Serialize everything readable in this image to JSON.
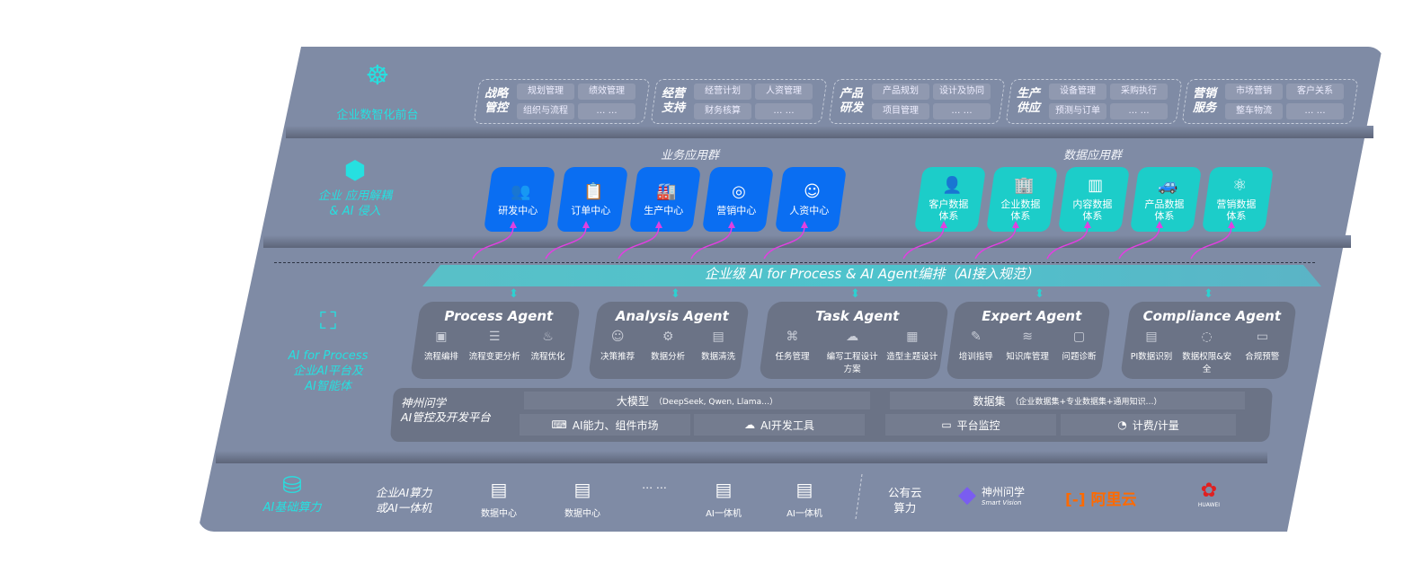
{
  "layers": {
    "front": {
      "label": "企业数智化前台",
      "icon": "brain-icon"
    },
    "app": {
      "label_line1": "企业 应用解耦",
      "label_line2": "& AI 侵入",
      "icon": "molecule-icon"
    },
    "ai": {
      "label_line1": "AI for Process",
      "label_line2": "企业AI平台及",
      "label_line3": "AI智能体",
      "icon": "face-scan-icon"
    },
    "infra": {
      "label": "AI基础算力",
      "icon": "database-icon"
    }
  },
  "front_groups": [
    {
      "title": "战略管控",
      "tags": [
        "规划管理",
        "绩效管理",
        "组织与流程",
        "… …"
      ]
    },
    {
      "title": "经营支持",
      "tags": [
        "经营计划",
        "人资管理",
        "财务核算",
        "… …"
      ]
    },
    {
      "title": "产品研发",
      "tags": [
        "产品规划",
        "设计及协同",
        "项目管理",
        "… …"
      ]
    },
    {
      "title": "生产供应",
      "tags": [
        "设备管理",
        "采购执行",
        "预测与订单",
        "… …"
      ]
    },
    {
      "title": "营销服务",
      "tags": [
        "市场营销",
        "客户关系",
        "整车物流",
        "… …"
      ]
    }
  ],
  "business_apps": {
    "title": "业务应用群",
    "items": [
      {
        "label": "研发中心",
        "icon": "team-icon"
      },
      {
        "label": "订单中心",
        "icon": "clipboard-icon"
      },
      {
        "label": "生产中心",
        "icon": "factory-icon"
      },
      {
        "label": "营销中心",
        "icon": "target-icon"
      },
      {
        "label": "人资中心",
        "icon": "people-icon"
      }
    ]
  },
  "data_apps": {
    "title": "数据应用群",
    "items": [
      {
        "label": "客户数据体系",
        "icon": "user-icon"
      },
      {
        "label": "企业数据体系",
        "icon": "building-icon"
      },
      {
        "label": "内容数据体系",
        "icon": "books-icon"
      },
      {
        "label": "产品数据体系",
        "icon": "car-icon"
      },
      {
        "label": "营销数据体系",
        "icon": "atom-icon"
      }
    ]
  },
  "orchestration_banner": "企业级 AI for Process & AI Agent编排（AI接入规范）",
  "agents": [
    {
      "name": "Process Agent",
      "items": [
        "流程编排",
        "流程变更分析",
        "流程优化"
      ]
    },
    {
      "name": "Analysis Agent",
      "items": [
        "决策推荐",
        "数据分析",
        "数据清洗"
      ]
    },
    {
      "name": "Task Agent",
      "items": [
        "任务管理",
        "编写工程设计方案",
        "造型主题设计"
      ]
    },
    {
      "name": "Expert Agent",
      "items": [
        "培训指导",
        "知识库管理",
        "问题诊断"
      ]
    },
    {
      "name": "Compliance Agent",
      "items": [
        "PI数据识别",
        "数据权限&安全",
        "合规预警"
      ]
    }
  ],
  "platform": {
    "title_line1": "神州问学",
    "title_line2": "AI管控及开发平台",
    "llm": "大模型",
    "llm_note": "（DeepSeek, Qwen, Llama…）",
    "dataset": "数据集",
    "dataset_note": "（企业数据集+专业数据集+通用知识…）",
    "tools": [
      "AI能力、组件市场",
      "AI开发工具",
      "平台监控",
      "计费/计量"
    ]
  },
  "infra": {
    "onprem_line1": "企业AI算力",
    "onprem_line2": "或AI一体机",
    "nodes": [
      "数据中心",
      "数据中心",
      "… …",
      "AI一体机",
      "AI一体机"
    ],
    "cloud_line1": "公有云",
    "cloud_line2": "算力",
    "vendors": {
      "shenzhou": "神州问学",
      "shenzhou_sub": "Smart Vision",
      "aliyun": "阿里云",
      "huawei": "HUAWEI"
    }
  },
  "colors": {
    "panel": "#7f8ba5",
    "blue": "#0a6ef2",
    "teal": "#1ccdc9",
    "accent": "#26e0e0",
    "arrow": "#e040e0",
    "aliyun": "#ff6a00",
    "huawei": "#e02020"
  }
}
